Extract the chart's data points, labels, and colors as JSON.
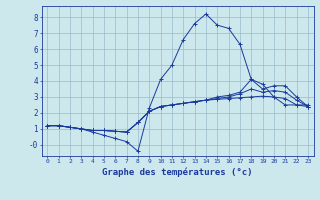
{
  "xlabel": "Graphe des températures (°c)",
  "background_color": "#cce8ec",
  "line_color": "#1a3a9e",
  "grid_color": "#99bbcc",
  "xlim": [
    -0.5,
    23.5
  ],
  "ylim": [
    -0.7,
    8.7
  ],
  "xtick_vals": [
    0,
    1,
    2,
    3,
    4,
    5,
    6,
    7,
    8,
    9,
    10,
    11,
    12,
    13,
    14,
    15,
    16,
    17,
    18,
    19,
    20,
    21,
    22,
    23
  ],
  "ytick_vals": [
    0,
    1,
    2,
    3,
    4,
    5,
    6,
    7,
    8
  ],
  "ytick_labels": [
    "-0",
    "1",
    "2",
    "3",
    "4",
    "5",
    "6",
    "7",
    "8"
  ],
  "series": [
    [
      1.2,
      1.2,
      1.1,
      1.0,
      0.8,
      0.6,
      0.4,
      0.2,
      -0.4,
      2.3,
      4.1,
      5.0,
      6.6,
      7.6,
      8.2,
      7.5,
      7.3,
      6.3,
      4.1,
      3.8,
      3.0,
      2.5,
      2.5,
      2.5
    ],
    [
      1.2,
      1.2,
      1.1,
      1.0,
      0.9,
      0.9,
      0.85,
      0.8,
      1.4,
      2.1,
      2.4,
      2.5,
      2.6,
      2.7,
      2.8,
      2.85,
      2.9,
      2.95,
      3.0,
      3.05,
      3.0,
      2.9,
      2.5,
      2.4
    ],
    [
      1.2,
      1.2,
      1.1,
      1.0,
      0.9,
      0.9,
      0.85,
      0.8,
      1.4,
      2.1,
      2.4,
      2.5,
      2.6,
      2.7,
      2.8,
      2.9,
      3.0,
      3.2,
      3.5,
      3.3,
      3.4,
      3.3,
      2.8,
      2.4
    ],
    [
      1.2,
      1.2,
      1.1,
      1.0,
      0.9,
      0.9,
      0.85,
      0.8,
      1.4,
      2.1,
      2.4,
      2.5,
      2.6,
      2.7,
      2.8,
      3.0,
      3.1,
      3.3,
      4.1,
      3.5,
      3.7,
      3.7,
      3.0,
      2.4
    ]
  ]
}
